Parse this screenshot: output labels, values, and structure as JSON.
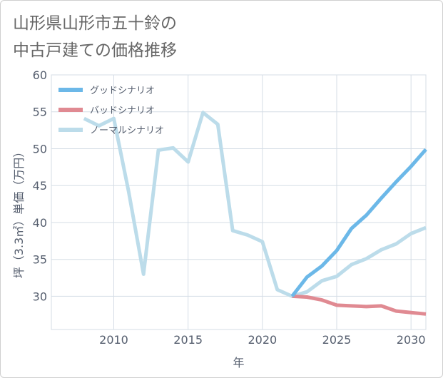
{
  "title_line1": "山形県山形市五十鈴の",
  "title_line2": "中古戸建ての価格推移",
  "chart_data": {
    "type": "line",
    "xlabel": "年",
    "ylabel": "坪（3.3㎡）単価（万円）",
    "xlim": [
      2005.8,
      2031
    ],
    "ylim": [
      25.5,
      60
    ],
    "xticks": [
      2010,
      2015,
      2020,
      2025,
      2030
    ],
    "yticks": [
      30,
      35,
      40,
      45,
      50,
      55,
      60
    ],
    "grid": true,
    "legend_position": "top-left",
    "series": [
      {
        "name": "グッドシナリオ",
        "color": "#6cb8e8",
        "x": [
          2022,
          2023,
          2024,
          2025,
          2026,
          2027,
          2028,
          2029,
          2030,
          2031
        ],
        "y": [
          30.0,
          32.6,
          34.1,
          36.2,
          39.2,
          41.0,
          43.3,
          45.5,
          47.6,
          49.9
        ]
      },
      {
        "name": "バッドシナリオ",
        "color": "#e08a92",
        "x": [
          2022,
          2023,
          2024,
          2025,
          2026,
          2027,
          2028,
          2029,
          2030,
          2031
        ],
        "y": [
          30.0,
          29.9,
          29.5,
          28.8,
          28.7,
          28.6,
          28.7,
          28.0,
          27.8,
          27.6
        ]
      },
      {
        "name": "ノーマルシナリオ",
        "color": "#bcdcea",
        "x": [
          2008,
          2009,
          2010,
          2011,
          2012,
          2013,
          2014,
          2015,
          2016,
          2017,
          2018,
          2019,
          2020,
          2021,
          2022,
          2023,
          2024,
          2025,
          2026,
          2027,
          2028,
          2029,
          2030,
          2031
        ],
        "y": [
          54.1,
          53.1,
          54.1,
          44.2,
          33.0,
          49.8,
          50.1,
          48.2,
          54.9,
          53.3,
          38.9,
          38.3,
          37.4,
          30.9,
          30.0,
          30.6,
          32.1,
          32.7,
          34.3,
          35.1,
          36.3,
          37.1,
          38.5,
          39.3
        ]
      }
    ]
  }
}
